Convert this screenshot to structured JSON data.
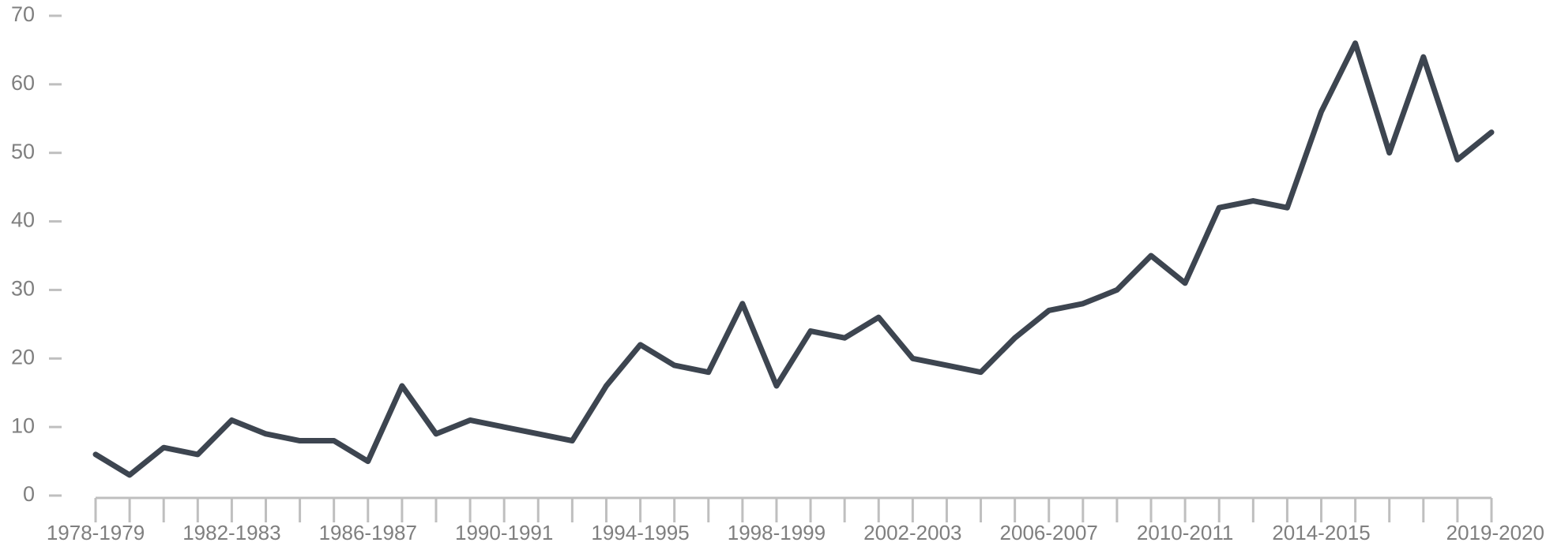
{
  "chart_data": {
    "type": "line",
    "categories": [
      "1978-1979",
      null,
      null,
      null,
      "1982-1983",
      null,
      null,
      null,
      "1986-1987",
      null,
      null,
      null,
      "1990-1991",
      null,
      null,
      null,
      "1994-1995",
      null,
      null,
      null,
      "1998-1999",
      null,
      null,
      null,
      "2002-2003",
      null,
      null,
      null,
      "2006-2007",
      null,
      null,
      null,
      "2010-2011",
      null,
      null,
      null,
      "2014-2015",
      null,
      null,
      null,
      null,
      "2019-2020"
    ],
    "values": [
      6,
      3,
      7,
      6,
      11,
      9,
      8,
      8,
      5,
      16,
      9,
      11,
      10,
      9,
      8,
      16,
      22,
      19,
      18,
      28,
      16,
      24,
      23,
      26,
      20,
      19,
      18,
      23,
      27,
      28,
      30,
      35,
      31,
      42,
      43,
      42,
      56,
      66,
      50,
      64,
      49,
      53
    ],
    "color": "#3d4550",
    "ylim": [
      0,
      70
    ],
    "yticks": [
      0,
      10,
      20,
      30,
      40,
      50,
      60,
      70
    ],
    "grid": false
  }
}
